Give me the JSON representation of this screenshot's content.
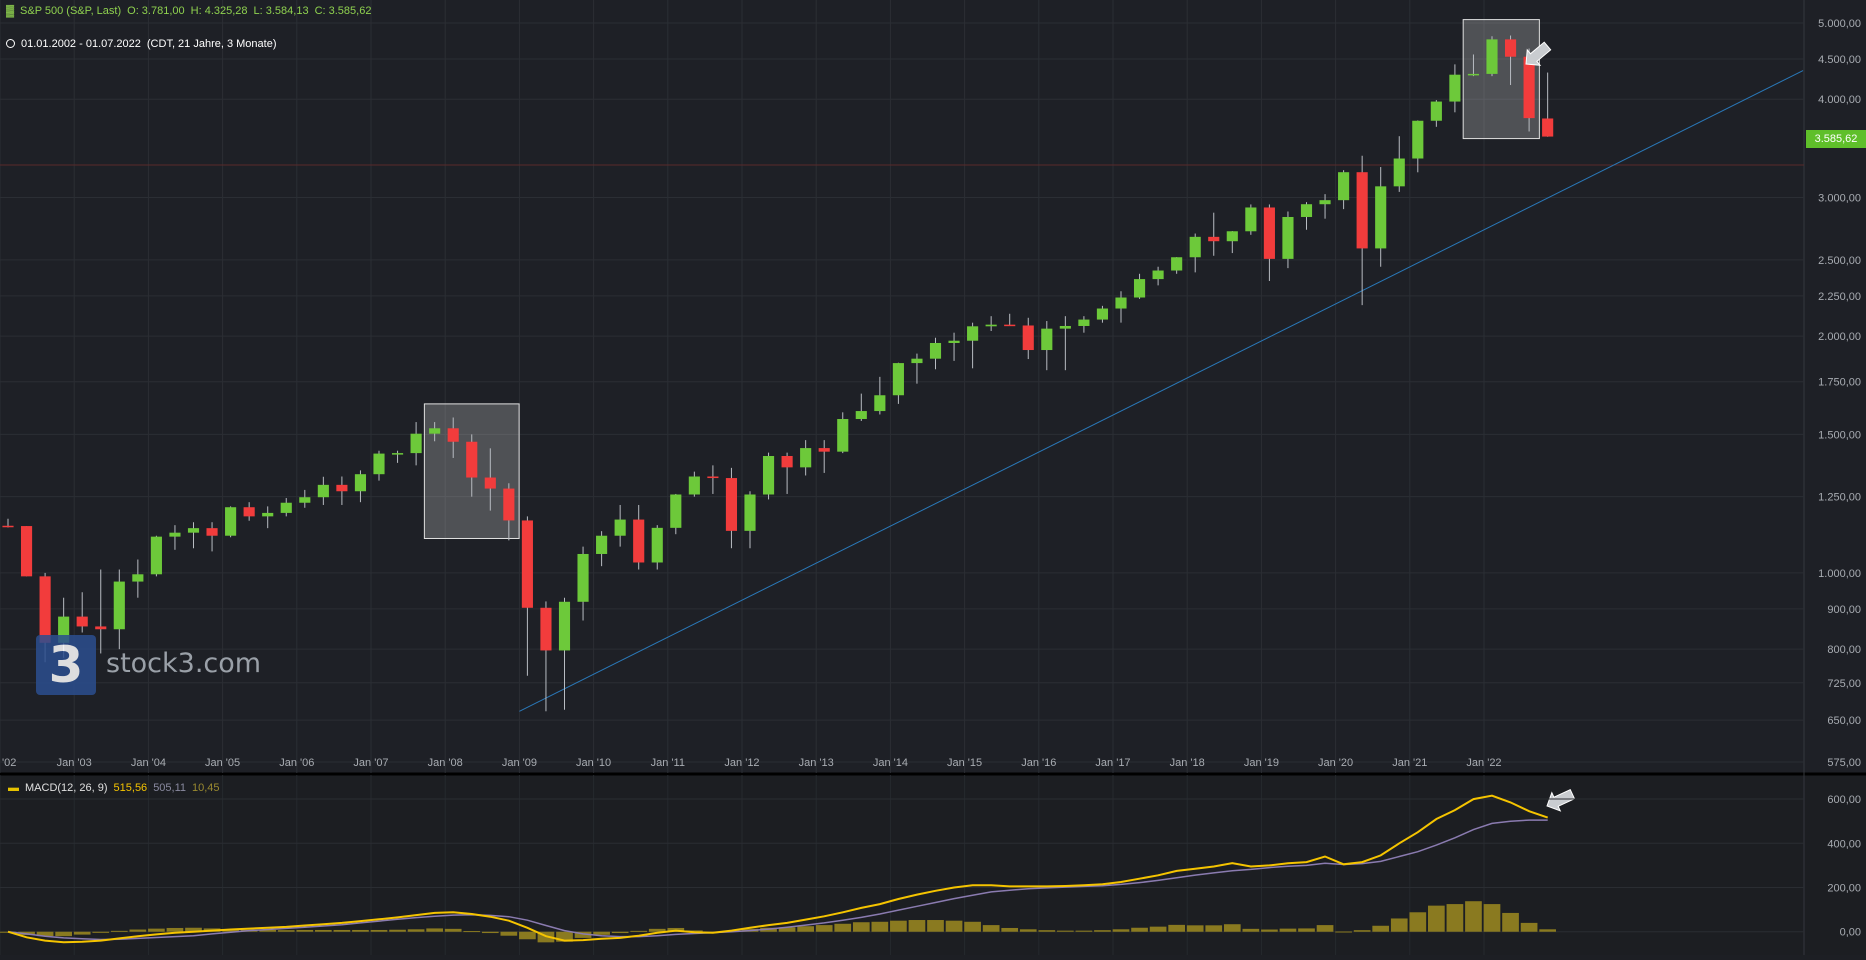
{
  "header": {
    "symbol_icon": "chart-type-icon",
    "symbol": "S&P 500 (S&P, Last)",
    "open": "O: 3.781,00",
    "high": "H: 4.325,28",
    "low": "L: 3.584,13",
    "close": "C: 3.585,62",
    "date_range": "01.01.2002 - 01.07.2022",
    "range_info": "(CDT, 21 Jahre, 3 Monate)",
    "last_price": "3.585,62",
    "macd_label": "MACD(12, 26, 9)",
    "macd_value": "515,56",
    "signal_value": "505,11",
    "hist_value": "10,45"
  },
  "logo": {
    "text": "stock3.com",
    "glyph": "3"
  },
  "colors": {
    "up": "#6dc93a",
    "down": "#f23c3c",
    "macd": "#f5c400",
    "signal": "#8a7bb0",
    "hist": "#8a7a20",
    "trendline": "#2a78b8",
    "bg": "#1d1f24"
  },
  "chart_data": [
    {
      "type": "candlestick",
      "title": "S&P 500 (S&P, Last)",
      "scale": "log",
      "ylim": [
        575,
        5000
      ],
      "yticks": [
        575,
        650,
        725,
        800,
        900,
        1000,
        1250,
        1500,
        1750,
        2000,
        2250,
        2500,
        3000,
        4000,
        4500,
        5000
      ],
      "ytick_labels": [
        "575,00",
        "650,00",
        "725,00",
        "800,00",
        "900,00",
        "1.000,00",
        "1.250,00",
        "1.500,00",
        "1.750,00",
        "2.000,00",
        "2.250,00",
        "2.500,00",
        "3.000,00",
        "4.000,00",
        "4.500,00",
        "5.000,00"
      ],
      "xtick_labels": [
        "'02",
        "Jan '03",
        "Jan '04",
        "Jan '05",
        "Jan '06",
        "Jan '07",
        "Jan '08",
        "Jan '09",
        "Jan '10",
        "Jan '11",
        "Jan '12",
        "Jan '13",
        "Jan '14",
        "Jan '15",
        "Jan '16",
        "Jan '17",
        "Jan '18",
        "Jan '19",
        "Jan '20",
        "Jan '21",
        "Jan '22"
      ],
      "x_start": 2002.0,
      "x_end": 2026.3,
      "period_months": 3,
      "candles": [
        [
          1148,
          1172,
          1142,
          1147
        ],
        [
          1147,
          1147,
          990,
          990
        ],
        [
          990,
          1000,
          770,
          815
        ],
        [
          815,
          930,
          780,
          880
        ],
        [
          880,
          945,
          840,
          855
        ],
        [
          855,
          1010,
          790,
          848
        ],
        [
          848,
          1010,
          800,
          975
        ],
        [
          975,
          1040,
          930,
          996
        ],
        [
          996,
          1115,
          990,
          1112
        ],
        [
          1112,
          1150,
          1070,
          1125
        ],
        [
          1125,
          1160,
          1075,
          1140
        ],
        [
          1140,
          1160,
          1065,
          1115
        ],
        [
          1115,
          1215,
          1110,
          1212
        ],
        [
          1212,
          1230,
          1165,
          1180
        ],
        [
          1180,
          1215,
          1140,
          1192
        ],
        [
          1192,
          1245,
          1180,
          1228
        ],
        [
          1228,
          1275,
          1210,
          1248
        ],
        [
          1248,
          1325,
          1220,
          1294
        ],
        [
          1294,
          1326,
          1220,
          1270
        ],
        [
          1270,
          1350,
          1230,
          1335
        ],
        [
          1335,
          1430,
          1310,
          1418
        ],
        [
          1418,
          1430,
          1380,
          1420
        ],
        [
          1420,
          1555,
          1370,
          1503
        ],
        [
          1503,
          1555,
          1470,
          1527
        ],
        [
          1527,
          1576,
          1400,
          1468
        ],
        [
          1468,
          1500,
          1250,
          1322
        ],
        [
          1322,
          1440,
          1200,
          1280
        ],
        [
          1280,
          1300,
          1100,
          1166
        ],
        [
          1166,
          1180,
          740,
          903
        ],
        [
          903,
          920,
          667,
          797
        ],
        [
          797,
          930,
          670,
          919
        ],
        [
          919,
          1080,
          870,
          1057
        ],
        [
          1057,
          1130,
          1020,
          1115
        ],
        [
          1115,
          1220,
          1080,
          1169
        ],
        [
          1169,
          1220,
          1010,
          1031
        ],
        [
          1031,
          1150,
          1010,
          1141
        ],
        [
          1141,
          1260,
          1120,
          1258
        ],
        [
          1258,
          1345,
          1250,
          1326
        ],
        [
          1326,
          1370,
          1260,
          1320
        ],
        [
          1320,
          1360,
          1075,
          1131
        ],
        [
          1131,
          1270,
          1075,
          1258
        ],
        [
          1258,
          1422,
          1240,
          1408
        ],
        [
          1408,
          1422,
          1260,
          1362
        ],
        [
          1362,
          1475,
          1330,
          1441
        ],
        [
          1441,
          1475,
          1340,
          1426
        ],
        [
          1426,
          1600,
          1420,
          1569
        ],
        [
          1569,
          1690,
          1560,
          1606
        ],
        [
          1606,
          1775,
          1590,
          1682
        ],
        [
          1682,
          1850,
          1640,
          1848
        ],
        [
          1848,
          1900,
          1740,
          1872
        ],
        [
          1872,
          1990,
          1815,
          1960
        ],
        [
          1960,
          2020,
          1860,
          1973
        ],
        [
          1973,
          2080,
          1820,
          2058
        ],
        [
          2058,
          2120,
          2030,
          2068
        ],
        [
          2068,
          2135,
          2060,
          2063
        ],
        [
          2063,
          2110,
          1870,
          1920
        ],
        [
          1920,
          2090,
          1810,
          2044
        ],
        [
          2044,
          2120,
          1810,
          2060
        ],
        [
          2060,
          2120,
          2020,
          2099
        ],
        [
          2099,
          2185,
          2080,
          2168
        ],
        [
          2168,
          2280,
          2080,
          2239
        ],
        [
          2239,
          2400,
          2230,
          2363
        ],
        [
          2363,
          2450,
          2320,
          2423
        ],
        [
          2423,
          2520,
          2400,
          2519
        ],
        [
          2519,
          2700,
          2410,
          2674
        ],
        [
          2674,
          2870,
          2530,
          2640
        ],
        [
          2640,
          2720,
          2550,
          2718
        ],
        [
          2718,
          2940,
          2690,
          2914
        ],
        [
          2914,
          2940,
          2350,
          2507
        ],
        [
          2507,
          2880,
          2440,
          2834
        ],
        [
          2834,
          2960,
          2730,
          2942
        ],
        [
          2942,
          3030,
          2820,
          2977
        ],
        [
          2977,
          3250,
          2900,
          3231
        ],
        [
          3231,
          3390,
          2190,
          2585
        ],
        [
          2585,
          3280,
          2450,
          3100
        ],
        [
          3100,
          3590,
          3050,
          3363
        ],
        [
          3363,
          3760,
          3230,
          3756
        ],
        [
          3756,
          3990,
          3690,
          3973
        ],
        [
          3973,
          4430,
          3850,
          4298
        ],
        [
          4298,
          4560,
          4280,
          4308
        ],
        [
          4308,
          4810,
          4280,
          4766
        ],
        [
          4766,
          4820,
          4170,
          4530
        ],
        [
          4530,
          4640,
          3640,
          3785
        ],
        [
          3781,
          4325,
          3584,
          3586
        ]
      ],
      "highlight_boxes": [
        {
          "from_index": 23,
          "to_index": 27,
          "low": 1106,
          "high": 1640
        },
        {
          "from_index": 79,
          "to_index": 82,
          "low": 3565,
          "high": 5050
        }
      ],
      "trendline": {
        "from": [
          2009.0,
          667
        ],
        "to": [
          2026.3,
          4350
        ]
      },
      "reference_line": 3300,
      "last_price": 3585.62
    },
    {
      "type": "line",
      "title": "MACD(12, 26, 9)",
      "ylim": [
        -60,
        650
      ],
      "yticks": [
        0,
        200,
        400,
        600
      ],
      "ytick_labels": [
        "0,00",
        "200,00",
        "400,00",
        "600,00"
      ],
      "x_start": 2002.0,
      "x_end": 2026.3,
      "macd": [
        0,
        -25,
        -40,
        -48,
        -45,
        -40,
        -30,
        -20,
        -12,
        -5,
        0,
        5,
        10,
        14,
        18,
        22,
        28,
        34,
        40,
        48,
        56,
        65,
        75,
        85,
        88,
        80,
        68,
        50,
        18,
        -20,
        -40,
        -38,
        -32,
        -28,
        -18,
        -5,
        5,
        -2,
        -5,
        5,
        18,
        30,
        40,
        55,
        70,
        88,
        108,
        125,
        148,
        168,
        185,
        200,
        210,
        210,
        205,
        205,
        205,
        207,
        210,
        215,
        225,
        240,
        255,
        275,
        285,
        295,
        310,
        295,
        300,
        310,
        315,
        340,
        305,
        315,
        345,
        400,
        450,
        510,
        550,
        600,
        615,
        585,
        545,
        516
      ],
      "signal": [
        0,
        -10,
        -20,
        -28,
        -32,
        -35,
        -34,
        -30,
        -26,
        -22,
        -18,
        -10,
        -2,
        5,
        10,
        15,
        20,
        26,
        32,
        40,
        48,
        56,
        64,
        70,
        75,
        77,
        74,
        68,
        52,
        28,
        5,
        -10,
        -18,
        -22,
        -22,
        -18,
        -12,
        -8,
        -4,
        0,
        5,
        12,
        20,
        30,
        40,
        52,
        65,
        80,
        98,
        115,
        132,
        150,
        165,
        180,
        188,
        194,
        198,
        202,
        205,
        208,
        214,
        222,
        232,
        244,
        256,
        266,
        276,
        282,
        290,
        296,
        300,
        310,
        304,
        308,
        318,
        340,
        362,
        392,
        425,
        462,
        490,
        500,
        505,
        505
      ],
      "histogram": [
        0,
        -15,
        -20,
        -20,
        -13,
        -5,
        4,
        10,
        14,
        17,
        18,
        15,
        12,
        9,
        8,
        7,
        8,
        8,
        8,
        8,
        8,
        9,
        11,
        15,
        13,
        3,
        -6,
        -18,
        -34,
        -48,
        -45,
        -28,
        -14,
        -6,
        4,
        13,
        17,
        6,
        -1,
        5,
        13,
        18,
        20,
        25,
        30,
        36,
        43,
        45,
        50,
        53,
        53,
        50,
        45,
        30,
        17,
        11,
        7,
        5,
        5,
        7,
        11,
        18,
        23,
        31,
        29,
        29,
        34,
        13,
        10,
        14,
        15,
        30,
        1,
        7,
        27,
        60,
        88,
        118,
        125,
        138,
        125,
        85,
        40,
        11
      ]
    }
  ]
}
